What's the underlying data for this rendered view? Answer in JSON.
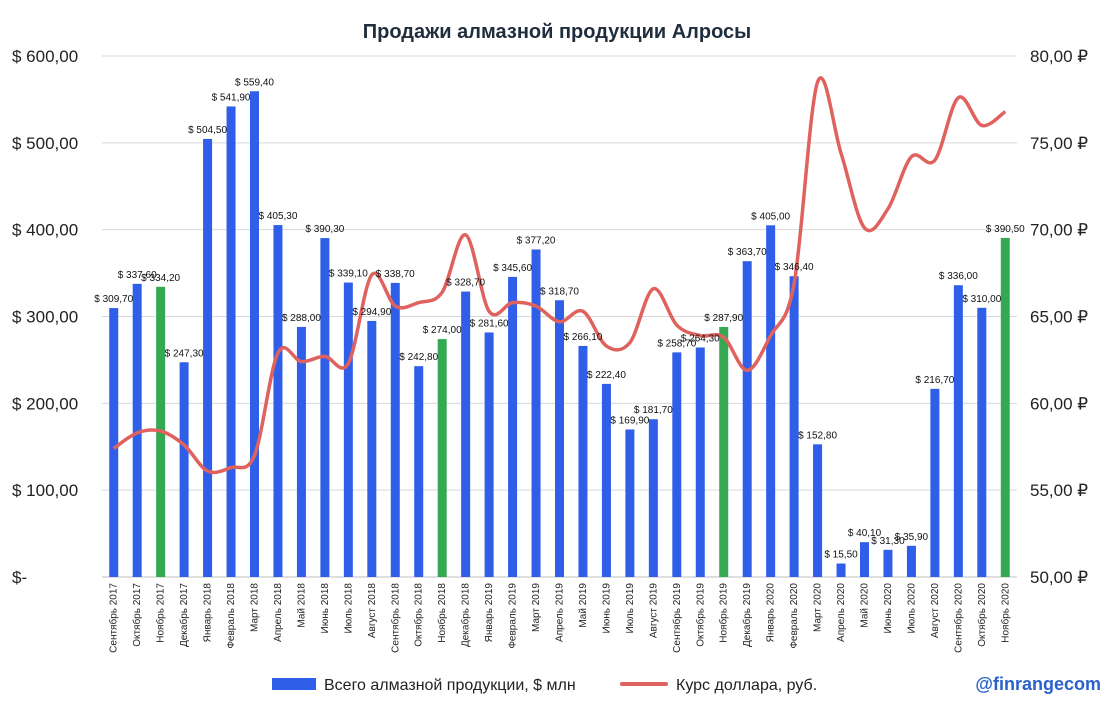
{
  "chart_data": {
    "type": "bar",
    "title": "Продажи алмазной продукции Алросы",
    "categories": [
      "Сентябрь 2017",
      "Октябрь 2017",
      "Ноябрь 2017",
      "Декабрь 2017",
      "Январь 2018",
      "Февраль 2018",
      "Март 2018",
      "Апрель 2018",
      "Май 2018",
      "Июнь 2018",
      "Июль 2018",
      "Август 2018",
      "Сентябрь 2018",
      "Октябрь 2018",
      "Ноябрь 2018",
      "Декабрь 2018",
      "Январь 2019",
      "Февраль 2019",
      "Март 2019",
      "Апрель 2019",
      "Май 2019",
      "Июнь 2019",
      "Июль 2019",
      "Август 2019",
      "Сентябрь 2019",
      "Октябрь 2019",
      "Ноябрь 2019",
      "Декабрь 2019",
      "Январь 2020",
      "Февраль 2020",
      "Март 2020",
      "Апрель 2020",
      "Май 2020",
      "Июнь 2020",
      "Июль 2020",
      "Август 2020",
      "Сентябрь 2020",
      "Октябрь 2020",
      "Ноябрь 2020"
    ],
    "series": [
      {
        "name": "Всего алмазной продукции, $ млн",
        "kind": "bar",
        "axis": "left",
        "color": "#2f5ee8",
        "highlight_color": "#34a853",
        "highlight_indices": [
          2,
          14,
          26,
          38
        ],
        "values": [
          309.7,
          337.6,
          334.2,
          247.3,
          504.5,
          541.9,
          559.4,
          405.3,
          288.0,
          390.3,
          339.1,
          294.9,
          338.7,
          242.8,
          274.0,
          328.7,
          281.6,
          345.6,
          377.2,
          318.7,
          266.1,
          222.4,
          169.9,
          181.7,
          258.7,
          264.3,
          287.9,
          363.7,
          405.0,
          346.4,
          152.8,
          15.5,
          40.1,
          31.3,
          35.9,
          216.7,
          336.0,
          310.0,
          390.5
        ],
        "labels": [
          "$ 309,70",
          "$ 337,60",
          "$ 334,20",
          "$ 247,30",
          "$ 504,50",
          "$ 541,90",
          "$ 559,40",
          "$ 405,30",
          "$ 288,00",
          "$ 390,30",
          "$ 339,10",
          "$ 294,90",
          "$ 338,70",
          "$ 242,80",
          "$ 274,00",
          "$ 328,70",
          "$ 281,60",
          "$ 345,60",
          "$ 377,20",
          "$ 318,70",
          "$ 266,10",
          "$ 222,40",
          "$ 169,90",
          "$ 181,70",
          "$ 258,70",
          "$ 264,30",
          "$ 287,90",
          "$ 363,70",
          "$ 405,00",
          "$ 346,40",
          "$ 152,80",
          "$ 15,50",
          "$ 40,10",
          "$ 31,30",
          "$ 35,90",
          "$ 216,70",
          "$ 336,00",
          "$ 310,00",
          "$ 390,50"
        ]
      },
      {
        "name": "Курс доллара, руб.",
        "kind": "line",
        "axis": "right",
        "color": "#e0625e",
        "values": [
          57.4,
          58.3,
          58.4,
          57.6,
          56.1,
          56.3,
          57.0,
          62.9,
          62.4,
          62.7,
          62.3,
          67.4,
          65.6,
          65.8,
          66.4,
          69.7,
          65.3,
          65.8,
          65.6,
          64.7,
          65.3,
          63.3,
          63.5,
          66.6,
          64.5,
          63.9,
          63.8,
          61.9,
          63.9,
          66.9,
          78.5,
          74.4,
          70.1,
          71.2,
          74.2,
          74.0,
          77.6,
          76.0,
          76.8
        ]
      }
    ],
    "ylim_left": [
      0,
      600
    ],
    "ylim_right": [
      50,
      80
    ],
    "yticks_left": [
      "$-",
      "$ 100,00",
      "$ 200,00",
      "$ 300,00",
      "$ 400,00",
      "$ 500,00",
      "$ 600,00"
    ],
    "yticks_right": [
      "50,00 ₽",
      "55,00 ₽",
      "60,00 ₽",
      "65,00 ₽",
      "70,00 ₽",
      "75,00 ₽",
      "80,00 ₽"
    ],
    "grid": "horizontal",
    "legend_position": "bottom-center"
  },
  "watermark": "@finrangecom"
}
